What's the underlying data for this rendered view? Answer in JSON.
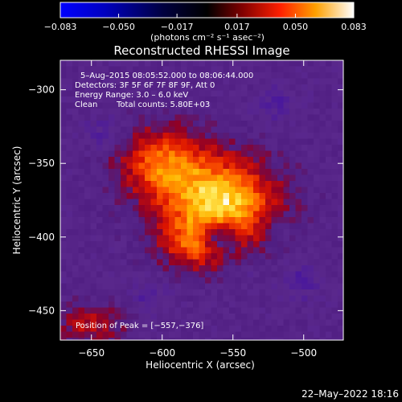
{
  "colorbar": {
    "tick_labels": [
      "−0.083",
      "−0.050",
      "−0.017",
      "0.017",
      "0.050",
      "0.083"
    ],
    "tick_values": [
      -0.083,
      -0.05,
      -0.017,
      0.017,
      0.05,
      0.083
    ],
    "units": "(photons cm⁻² s⁻¹ asec⁻²)",
    "range": [
      -0.083,
      0.083
    ]
  },
  "info": {
    "time_range": "5–Aug–2015 08:05:52.000 to 08:06:44.000",
    "detectors": "Detectors: 3F 5F 6F 7F 8F 9F, Att 0",
    "energy": "Energy Range: 3.0 – 6.0 keV",
    "clean_label": "Clean",
    "total_counts": "Total counts: 5.80E+03",
    "peak": "Position of Peak = [−557,−376]"
  },
  "timestamp": "22–May–2022 18:16",
  "chart_data": {
    "type": "heatmap",
    "title": "Reconstructed RHESSI Image",
    "xlabel": "Heliocentric X (arcsec)",
    "ylabel": "Heliocentric Y (arcsec)",
    "xlim": [
      -672,
      -472
    ],
    "ylim": [
      -470,
      -280
    ],
    "x_ticks": [
      -650,
      -600,
      -550,
      -500
    ],
    "x_tick_labels": [
      "−650",
      "−600",
      "−550",
      "−500"
    ],
    "y_ticks": [
      -450,
      -400,
      -350,
      -300
    ],
    "y_tick_labels": [
      "−450",
      "−400",
      "−350",
      "−300"
    ],
    "peak_position": [
      -557,
      -376
    ],
    "colormap": "rhessi-heat",
    "colors": {
      "negative": "#0000ff",
      "zero": "#000000",
      "mid": "#ff3000",
      "positive": "#ffffff"
    },
    "emission_sources": [
      {
        "center": [
          -558,
          -378
        ],
        "peak_value": 0.083
      },
      {
        "center": [
          -600,
          -350
        ],
        "peak_value": 0.055
      },
      {
        "center": [
          -575,
          -405
        ],
        "peak_value": 0.04
      },
      {
        "center": [
          -650,
          -460
        ],
        "peak_value": 0.03
      }
    ]
  }
}
